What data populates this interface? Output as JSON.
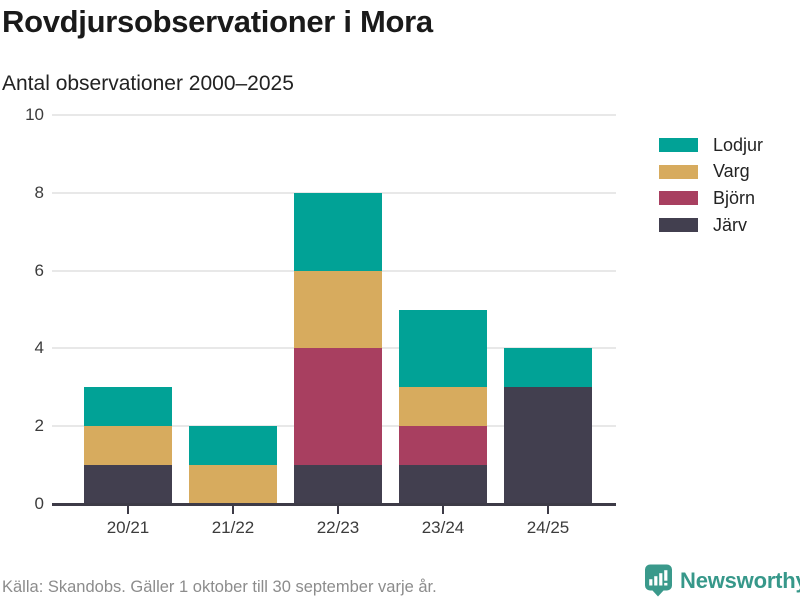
{
  "title": "Rovdjursobservationer i Mora",
  "subtitle": "Antal observationer 2000–2025",
  "footer": {
    "source": "Källa: Skandobs. Gäller 1 oktober till 30 september varje år.",
    "brand": "Newsworthy"
  },
  "colors": {
    "lodjur": "#01a296",
    "varg": "#d7ab5e",
    "bjorn": "#a83f60",
    "jarv": "#423f4f",
    "axis": "#3d3b47",
    "gridline": "#e8e8e8",
    "brand_teal": "#37988a",
    "muted_text": "#8c8c8c"
  },
  "chart_data": {
    "type": "bar",
    "stacked": true,
    "title": "Rovdjursobservationer i Mora",
    "subtitle": "Antal observationer 2000–2025",
    "categories": [
      "20/21",
      "21/22",
      "22/23",
      "23/24",
      "24/25"
    ],
    "series": [
      {
        "name": "Lodjur",
        "color": "#01a296",
        "values": [
          1,
          1,
          2,
          2,
          1
        ]
      },
      {
        "name": "Varg",
        "color": "#d7ab5e",
        "values": [
          1,
          1,
          2,
          1,
          0
        ]
      },
      {
        "name": "Björn",
        "color": "#a83f60",
        "values": [
          0,
          0,
          3,
          1,
          0
        ]
      },
      {
        "name": "Järv",
        "color": "#423f4f",
        "values": [
          1,
          0,
          1,
          1,
          3
        ]
      }
    ],
    "stack_order_bottom_to_top": [
      "Järv",
      "Björn",
      "Varg",
      "Lodjur"
    ],
    "totals": [
      3,
      2,
      8,
      5,
      4
    ],
    "ylim": [
      0,
      10
    ],
    "yticks": [
      0,
      2,
      4,
      6,
      8,
      10
    ],
    "xlabel": "",
    "ylabel": "",
    "grid": true,
    "legend_position": "right"
  }
}
